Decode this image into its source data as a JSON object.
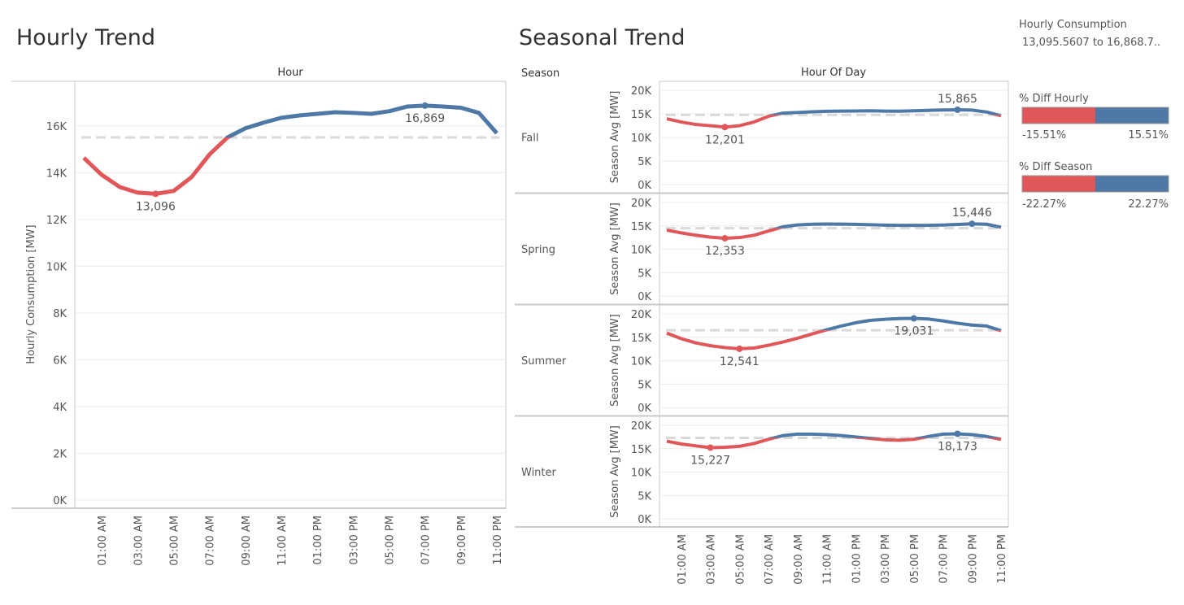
{
  "chart_data": [
    {
      "type": "line",
      "title": "Hourly Trend",
      "x_header": "Hour",
      "y_label": "Hourly Consumption [MW]",
      "categories": [
        null,
        "01:00 AM",
        null,
        "03:00 AM",
        null,
        "05:00 AM",
        null,
        "07:00 AM",
        null,
        "09:00 AM",
        null,
        "11:00 AM",
        null,
        "01:00 PM",
        null,
        "03:00 PM",
        null,
        "05:00 PM",
        null,
        "07:00 PM",
        null,
        "09:00 PM",
        null,
        "11:00 PM"
      ],
      "values": [
        14640,
        13910,
        13390,
        13150,
        13096,
        13220,
        13810,
        14780,
        15510,
        15900,
        16140,
        16350,
        16450,
        16520,
        16590,
        16560,
        16520,
        16630,
        16830,
        16869,
        16830,
        16780,
        16560,
        15690
      ],
      "value_labels": [
        null,
        null,
        null,
        null,
        "13,096",
        null,
        null,
        null,
        null,
        null,
        null,
        null,
        null,
        null,
        null,
        null,
        null,
        null,
        null,
        "16,869",
        null,
        null,
        null,
        null
      ],
      "reference_line": 15510,
      "colors": {
        "below": "#e15759",
        "above": "#4e79a7"
      },
      "ylim": [
        -350,
        17910
      ],
      "yticks": [
        {
          "value": 0,
          "label": "0K"
        },
        {
          "value": 2000,
          "label": "2K"
        },
        {
          "value": 4000,
          "label": "4K"
        },
        {
          "value": 6000,
          "label": "6K"
        },
        {
          "value": 8000,
          "label": "8K"
        },
        {
          "value": 10000,
          "label": "10K"
        },
        {
          "value": 12000,
          "label": "12K"
        },
        {
          "value": 14000,
          "label": "14K"
        },
        {
          "value": 16000,
          "label": "16K"
        }
      ],
      "grid": true
    },
    {
      "type": "line",
      "title": "Seasonal Trend",
      "row_header": "Season",
      "x_header": "Hour Of Day",
      "y_label": "Season Avg [MW]",
      "categories": [
        null,
        "01:00 AM",
        null,
        "03:00 AM",
        null,
        "05:00 AM",
        null,
        "07:00 AM",
        null,
        "09:00 AM",
        null,
        "11:00 AM",
        null,
        "01:00 PM",
        null,
        "03:00 PM",
        null,
        "05:00 PM",
        null,
        "07:00 PM",
        null,
        "09:00 PM",
        null,
        "11:00 PM"
      ],
      "colors": {
        "below": "#e15759",
        "above": "#4e79a7"
      },
      "ylim": [
        -1700,
        21900
      ],
      "yticks": [
        {
          "value": 0,
          "label": "0K"
        },
        {
          "value": 5000,
          "label": "5K"
        },
        {
          "value": 10000,
          "label": "10K"
        },
        {
          "value": 15000,
          "label": "15K"
        },
        {
          "value": 20000,
          "label": "20K"
        }
      ],
      "grid": true,
      "panels": [
        {
          "name": "Fall",
          "reference_line": 14800,
          "values": [
            13970,
            13280,
            12760,
            12500,
            12201,
            12500,
            13280,
            14500,
            15170,
            15300,
            15450,
            15550,
            15600,
            15620,
            15650,
            15600,
            15580,
            15650,
            15750,
            15820,
            15865,
            15800,
            15400,
            14600
          ],
          "value_labels": [
            null,
            null,
            null,
            null,
            "12,201",
            null,
            null,
            null,
            null,
            null,
            null,
            null,
            null,
            null,
            null,
            null,
            null,
            null,
            null,
            null,
            "15,865",
            null,
            null,
            null
          ]
        },
        {
          "name": "Spring",
          "reference_line": 14500,
          "values": [
            14100,
            13500,
            13000,
            12600,
            12353,
            12500,
            13000,
            13900,
            14800,
            15200,
            15350,
            15400,
            15380,
            15320,
            15250,
            15150,
            15100,
            15100,
            15120,
            15180,
            15300,
            15446,
            15350,
            14700
          ],
          "value_labels": [
            null,
            null,
            null,
            null,
            "12,353",
            null,
            null,
            null,
            null,
            null,
            null,
            null,
            null,
            null,
            null,
            null,
            null,
            null,
            null,
            null,
            null,
            "15,446",
            null,
            null
          ]
        },
        {
          "name": "Summer",
          "reference_line": 16500,
          "values": [
            15900,
            14700,
            13800,
            13200,
            12800,
            12541,
            12700,
            13300,
            14000,
            14800,
            15700,
            16600,
            17400,
            18100,
            18600,
            18850,
            19000,
            19031,
            18900,
            18500,
            18000,
            17600,
            17400,
            16400
          ],
          "value_labels": [
            null,
            null,
            null,
            null,
            null,
            "12,541",
            null,
            null,
            null,
            null,
            null,
            null,
            null,
            null,
            null,
            null,
            null,
            "19,031",
            null,
            null,
            null,
            null,
            null,
            null
          ]
        },
        {
          "name": "Winter",
          "reference_line": 17300,
          "values": [
            16600,
            16000,
            15600,
            15227,
            15300,
            15500,
            16100,
            17000,
            17800,
            18100,
            18100,
            18000,
            17800,
            17500,
            17200,
            16900,
            16800,
            17000,
            17600,
            18100,
            18173,
            18000,
            17600,
            17000
          ],
          "value_labels": [
            null,
            null,
            null,
            "15,227",
            null,
            null,
            null,
            null,
            null,
            null,
            null,
            null,
            null,
            null,
            null,
            null,
            null,
            null,
            null,
            null,
            "18,173",
            null,
            null,
            null
          ]
        }
      ]
    }
  ],
  "legends": [
    {
      "title": "Hourly Consumption",
      "range": "13,095.5607 to 16,868.7.."
    },
    {
      "title": "% Diff Hourly",
      "min": "-15.51%",
      "max": "15.51%"
    },
    {
      "title": "% Diff Season",
      "min": "-22.27%",
      "max": "22.27%"
    }
  ]
}
